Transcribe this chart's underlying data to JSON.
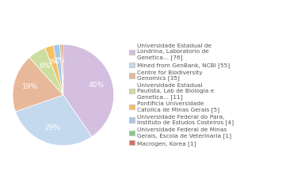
{
  "labels": [
    "Universidade Estadual de\nLondrina, Laboratorio de\nGenetica... [76]",
    "Mined from GenBank, NCBI [55]",
    "Centre for Biodiversity\nGenomics [35]",
    "Universidade Estadual\nPaulista, Lab de Biologia e\nGenetica... [11]",
    "Pontificia Universidade\nCatolica de Minas Gerais [5]",
    "Universidade Federal do Para,\nInstituto de Estudos Costeiros [4]",
    "Universidade Federal de Minas\nGerais, Escola de Veterinaria [1]",
    "Macrogen, Korea [1]"
  ],
  "values": [
    76,
    55,
    35,
    11,
    5,
    4,
    1,
    1
  ],
  "colors": [
    "#d4bfe0",
    "#c5d9ee",
    "#e8b89a",
    "#cddfa0",
    "#f5c060",
    "#a8c8e8",
    "#88c888",
    "#d87060"
  ],
  "text_color": "#555555",
  "bg_color": "#ffffff"
}
